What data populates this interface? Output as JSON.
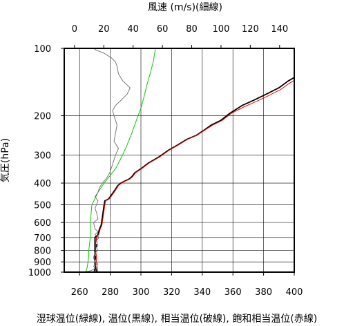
{
  "chart_data": {
    "type": "line",
    "title": "",
    "x_label_bottom": "湿球温位(緑線), 温位(黒線), 相当温位(破線), 飽和相当温位(赤線)",
    "x_label_top": "風速 (m/s)(細線)",
    "ylabel": "気圧(hPa)",
    "xlim_bottom": [
      250,
      400
    ],
    "xlim_top": [
      -7,
      150
    ],
    "ylim": [
      1000,
      100
    ],
    "y_scale": "log",
    "grid": true,
    "x_ticks_bottom": [
      260,
      280,
      300,
      320,
      340,
      360,
      380,
      400
    ],
    "x_ticks_top": [
      0,
      20,
      40,
      60,
      80,
      100,
      120,
      140
    ],
    "y_ticks": [
      1000,
      900,
      800,
      700,
      600,
      500,
      400,
      300,
      200,
      100
    ],
    "series": [
      {
        "color": "#00cc00",
        "style": "solid",
        "axis": "bottom",
        "points": [
          [
            264,
            1000
          ],
          [
            265,
            950
          ],
          [
            265.5,
            900
          ],
          [
            266,
            850
          ],
          [
            266,
            800
          ],
          [
            266.5,
            750
          ],
          [
            267,
            700
          ],
          [
            267,
            650
          ],
          [
            267,
            600
          ],
          [
            267.5,
            550
          ],
          [
            268,
            500
          ],
          [
            270,
            470
          ],
          [
            272,
            440
          ],
          [
            276,
            400
          ],
          [
            280,
            370
          ],
          [
            284,
            340
          ],
          [
            288,
            300
          ],
          [
            291,
            270
          ],
          [
            294,
            240
          ],
          [
            297,
            210
          ],
          [
            300,
            185
          ],
          [
            302,
            165
          ],
          [
            304,
            145
          ],
          [
            306,
            130
          ],
          [
            308,
            115
          ],
          [
            309.5,
            100
          ]
        ]
      },
      {
        "color": "#000000",
        "style": "solid",
        "axis": "bottom",
        "points": [
          [
            271,
            1000
          ],
          [
            270.5,
            950
          ],
          [
            270,
            900
          ],
          [
            270,
            850
          ],
          [
            270,
            800
          ],
          [
            270,
            750
          ],
          [
            270,
            700
          ],
          [
            272,
            680
          ],
          [
            272.5,
            660
          ],
          [
            273,
            640
          ],
          [
            274,
            620
          ],
          [
            274.5,
            590
          ],
          [
            275,
            560
          ],
          [
            276,
            500
          ],
          [
            276.5,
            480
          ],
          [
            278,
            475
          ],
          [
            279,
            470
          ],
          [
            282,
            440
          ],
          [
            283,
            430
          ],
          [
            285,
            410
          ],
          [
            287,
            400
          ],
          [
            290,
            390
          ],
          [
            292,
            385
          ],
          [
            294,
            375
          ],
          [
            296,
            360
          ],
          [
            300,
            345
          ],
          [
            305,
            325
          ],
          [
            312,
            305
          ],
          [
            318,
            285
          ],
          [
            324,
            270
          ],
          [
            330,
            255
          ],
          [
            336,
            245
          ],
          [
            342,
            230
          ],
          [
            346,
            220
          ],
          [
            352,
            210
          ],
          [
            358,
            195
          ],
          [
            366,
            180
          ],
          [
            374,
            170
          ],
          [
            382,
            160
          ],
          [
            390,
            150
          ],
          [
            396,
            140
          ],
          [
            400,
            135
          ]
        ]
      },
      {
        "color": "#000000",
        "style": "dashed",
        "axis": "bottom",
        "points": [
          [
            269.5,
            1000
          ],
          [
            270,
            950
          ],
          [
            270,
            900
          ],
          [
            270.5,
            850
          ],
          [
            270.5,
            800
          ],
          [
            271,
            750
          ],
          [
            271,
            700
          ]
        ]
      },
      {
        "color": "#ff0000",
        "style": "solid",
        "axis": "bottom",
        "points": [
          [
            272,
            1000
          ],
          [
            271.5,
            950
          ],
          [
            271,
            900
          ],
          [
            271,
            850
          ],
          [
            270.5,
            800
          ],
          [
            270.5,
            750
          ],
          [
            271,
            700
          ],
          [
            272.5,
            680
          ],
          [
            273,
            660
          ],
          [
            273.5,
            640
          ],
          [
            274.5,
            620
          ],
          [
            275,
            590
          ],
          [
            275.5,
            560
          ],
          [
            276.5,
            500
          ],
          [
            277,
            480
          ],
          [
            278.5,
            475
          ],
          [
            279.5,
            470
          ],
          [
            282.5,
            440
          ],
          [
            283.5,
            430
          ],
          [
            285.5,
            410
          ],
          [
            287.5,
            400
          ],
          [
            290.5,
            390
          ],
          [
            292.5,
            385
          ],
          [
            294.5,
            375
          ],
          [
            296.5,
            360
          ],
          [
            300.5,
            345
          ],
          [
            305.5,
            325
          ],
          [
            312.5,
            305
          ],
          [
            318.5,
            285
          ],
          [
            324.5,
            270
          ],
          [
            330.5,
            255
          ],
          [
            336.5,
            245
          ],
          [
            342.5,
            230
          ],
          [
            347,
            220
          ],
          [
            353,
            210
          ],
          [
            359,
            195
          ],
          [
            367,
            183
          ],
          [
            375,
            173
          ],
          [
            383,
            163
          ],
          [
            391,
            153
          ],
          [
            397,
            143
          ],
          [
            400,
            139
          ]
        ]
      },
      {
        "color": "#777777",
        "style": "solid",
        "axis": "top",
        "points": [
          [
            5,
            1000
          ],
          [
            10,
            990
          ],
          [
            12,
            980
          ],
          [
            14,
            960
          ],
          [
            13,
            940
          ],
          [
            16,
            920
          ],
          [
            14,
            900
          ],
          [
            13,
            860
          ],
          [
            14,
            820
          ],
          [
            16,
            800
          ],
          [
            15,
            780
          ],
          [
            16,
            760
          ],
          [
            15,
            720
          ],
          [
            17,
            700
          ],
          [
            14,
            680
          ],
          [
            16,
            660
          ],
          [
            14,
            640
          ],
          [
            13,
            600
          ],
          [
            16,
            580
          ],
          [
            15,
            540
          ],
          [
            14,
            520
          ],
          [
            15,
            500
          ],
          [
            16,
            480
          ],
          [
            14,
            460
          ],
          [
            16,
            440
          ],
          [
            17,
            420
          ],
          [
            19,
            400
          ],
          [
            22,
            380
          ],
          [
            24,
            360
          ],
          [
            26,
            330
          ],
          [
            28,
            300
          ],
          [
            30,
            280
          ],
          [
            27,
            260
          ],
          [
            28,
            240
          ],
          [
            29,
            220
          ],
          [
            27,
            200
          ],
          [
            26,
            190
          ],
          [
            28,
            180
          ],
          [
            32,
            170
          ],
          [
            36,
            160
          ],
          [
            38,
            150
          ],
          [
            33,
            140
          ],
          [
            30,
            130
          ],
          [
            29,
            120
          ],
          [
            28,
            115
          ],
          [
            25,
            110
          ],
          [
            20,
            105
          ],
          [
            15,
            102
          ],
          [
            13,
            100
          ]
        ]
      }
    ]
  }
}
